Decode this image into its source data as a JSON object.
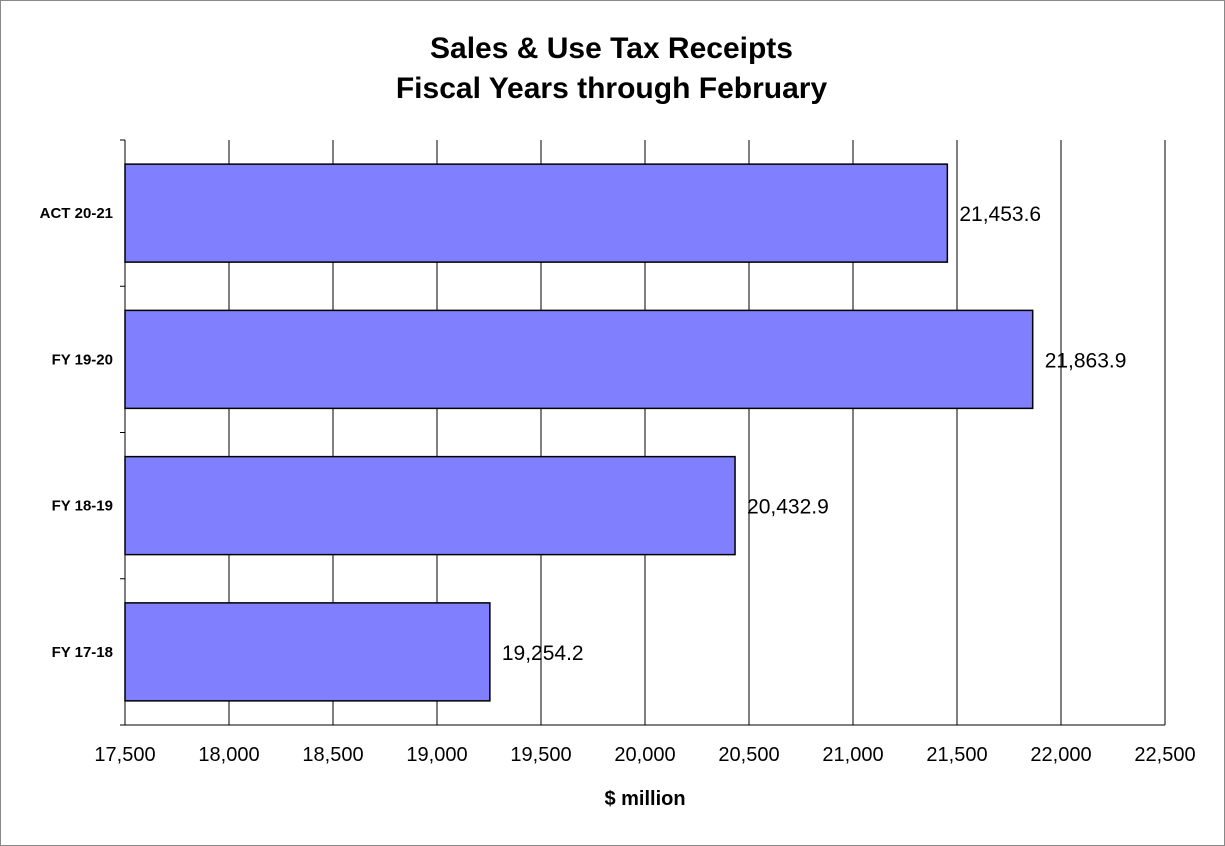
{
  "chart_data": {
    "type": "bar",
    "orientation": "horizontal",
    "title": "Sales & Use Tax Receipts",
    "subtitle": "Fiscal Years through February",
    "xlabel": "$ million",
    "ylabel": "",
    "categories": [
      "ACT 20-21",
      "FY 19-20",
      "FY 18-19",
      "FY 17-18"
    ],
    "values": [
      21453.6,
      21863.9,
      20432.9,
      19254.2
    ],
    "value_labels": [
      "21,453.6",
      "21,863.9",
      "20,432.9",
      "19,254.2"
    ],
    "xlim": [
      17500,
      22500
    ],
    "xticks": [
      17500,
      18000,
      18500,
      19000,
      19500,
      20000,
      20500,
      21000,
      21500,
      22000,
      22500
    ],
    "xtick_labels": [
      "17,500",
      "18,000",
      "18,500",
      "19,000",
      "19,500",
      "20,000",
      "20,500",
      "21,000",
      "21,500",
      "22,000",
      "22,500"
    ],
    "grid": "vertical",
    "legend": "none",
    "bar_color": "#8080ff"
  }
}
